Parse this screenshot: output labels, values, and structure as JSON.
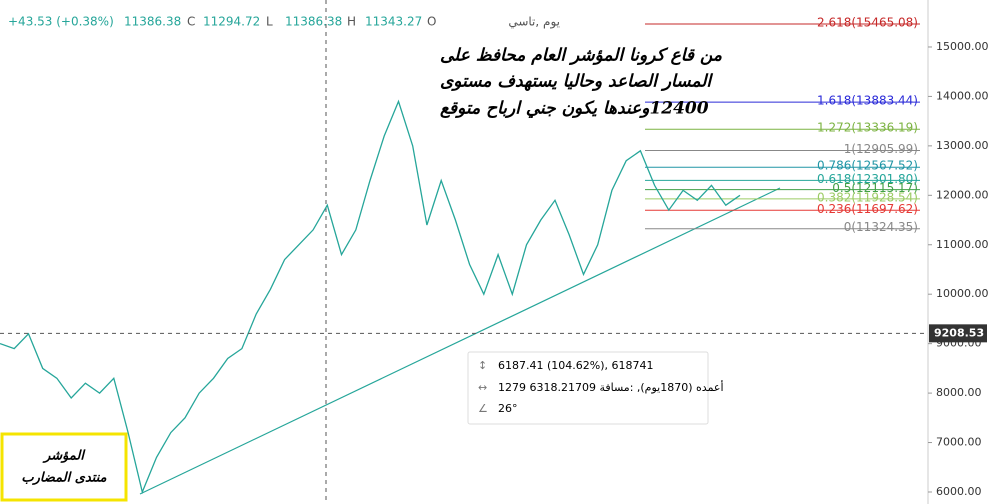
{
  "chart_data": {
    "type": "line",
    "header": {
      "change": "+43.53 (+0.38%)",
      "close": "11386.38",
      "close_key": "C",
      "low": "11294.72",
      "low_key": "L",
      "high": "11386.38",
      "high_key": "H",
      "open": "11343.27",
      "open_key": "O",
      "symbol": "يوم ,تاسي"
    },
    "annotation": [
      "من قاع كرونا المؤشر العام محافظ على",
      "المسار الصاعد وحاليا يستهدف مستوى",
      "12400وعندها يكون جني ارباح متوقع"
    ],
    "watermark": [
      "المؤشر",
      "منتدى المضارب"
    ],
    "measure": [
      "6187.41 (104.62%), 618741",
      "1279 أعمده (1870يوم), :مسافة 6318.21709",
      "26°"
    ],
    "color": "#26a69a",
    "values": [
      9000,
      8900,
      9200,
      8500,
      8300,
      7900,
      8200,
      8000,
      8300,
      7200,
      6000,
      6700,
      7200,
      7500,
      8000,
      8300,
      8700,
      8900,
      9600,
      10100,
      10700,
      11000,
      11300,
      11800,
      10800,
      11300,
      12300,
      13200,
      13900,
      13000,
      11400,
      12300,
      11500,
      10600,
      10000,
      10800,
      10000,
      11000,
      11500,
      11900,
      11200,
      10400,
      11000,
      12100,
      12700,
      12900,
      12200,
      11700,
      12100,
      11900,
      12200,
      11800,
      12000
    ],
    "ylim": [
      5757,
      15950
    ],
    "yticks": [
      {
        "value": 6000,
        "label": "6000.00"
      },
      {
        "value": 7000,
        "label": "7000.00"
      },
      {
        "value": 8000,
        "label": "8000.00"
      },
      {
        "value": 9000,
        "label": "9000.00"
      },
      {
        "value": 10000,
        "label": "10000.00"
      },
      {
        "value": 11000,
        "label": "11000.00"
      },
      {
        "value": 12000,
        "label": "12000.00"
      },
      {
        "value": 13000,
        "label": "13000.00"
      },
      {
        "value": 14000,
        "label": "14000.00"
      },
      {
        "value": 15000,
        "label": "15000.00"
      }
    ],
    "last_price": {
      "value": 9208.53,
      "label": "9208.53"
    },
    "fib": [
      {
        "value": 15465.08,
        "label": "2.618(15465.08)",
        "color": "#c62828"
      },
      {
        "value": 13883.44,
        "label": "1.618(13883.44)",
        "color": "#2a2ad8"
      },
      {
        "value": 13336.19,
        "label": "1.272(13336.19)",
        "color": "#7cb342"
      },
      {
        "value": 12905.99,
        "label": "1(12905.99)",
        "color": "#888888"
      },
      {
        "value": 12567.52,
        "label": "0.786(12567.52)",
        "color": "#2196a6"
      },
      {
        "value": 12301.8,
        "label": "0.618(12301.80)",
        "color": "#26a69a"
      },
      {
        "value": 12115.17,
        "label": "0.5(12115.17)",
        "color": "#43a047"
      },
      {
        "value": 11928.54,
        "label": "0.382(11928.54)",
        "color": "#9ccc65"
      },
      {
        "value": 11697.62,
        "label": "0.236(11697.62)",
        "color": "#e53935"
      },
      {
        "value": 11324.35,
        "label": "0(11324.35)",
        "color": "#888888"
      }
    ]
  }
}
